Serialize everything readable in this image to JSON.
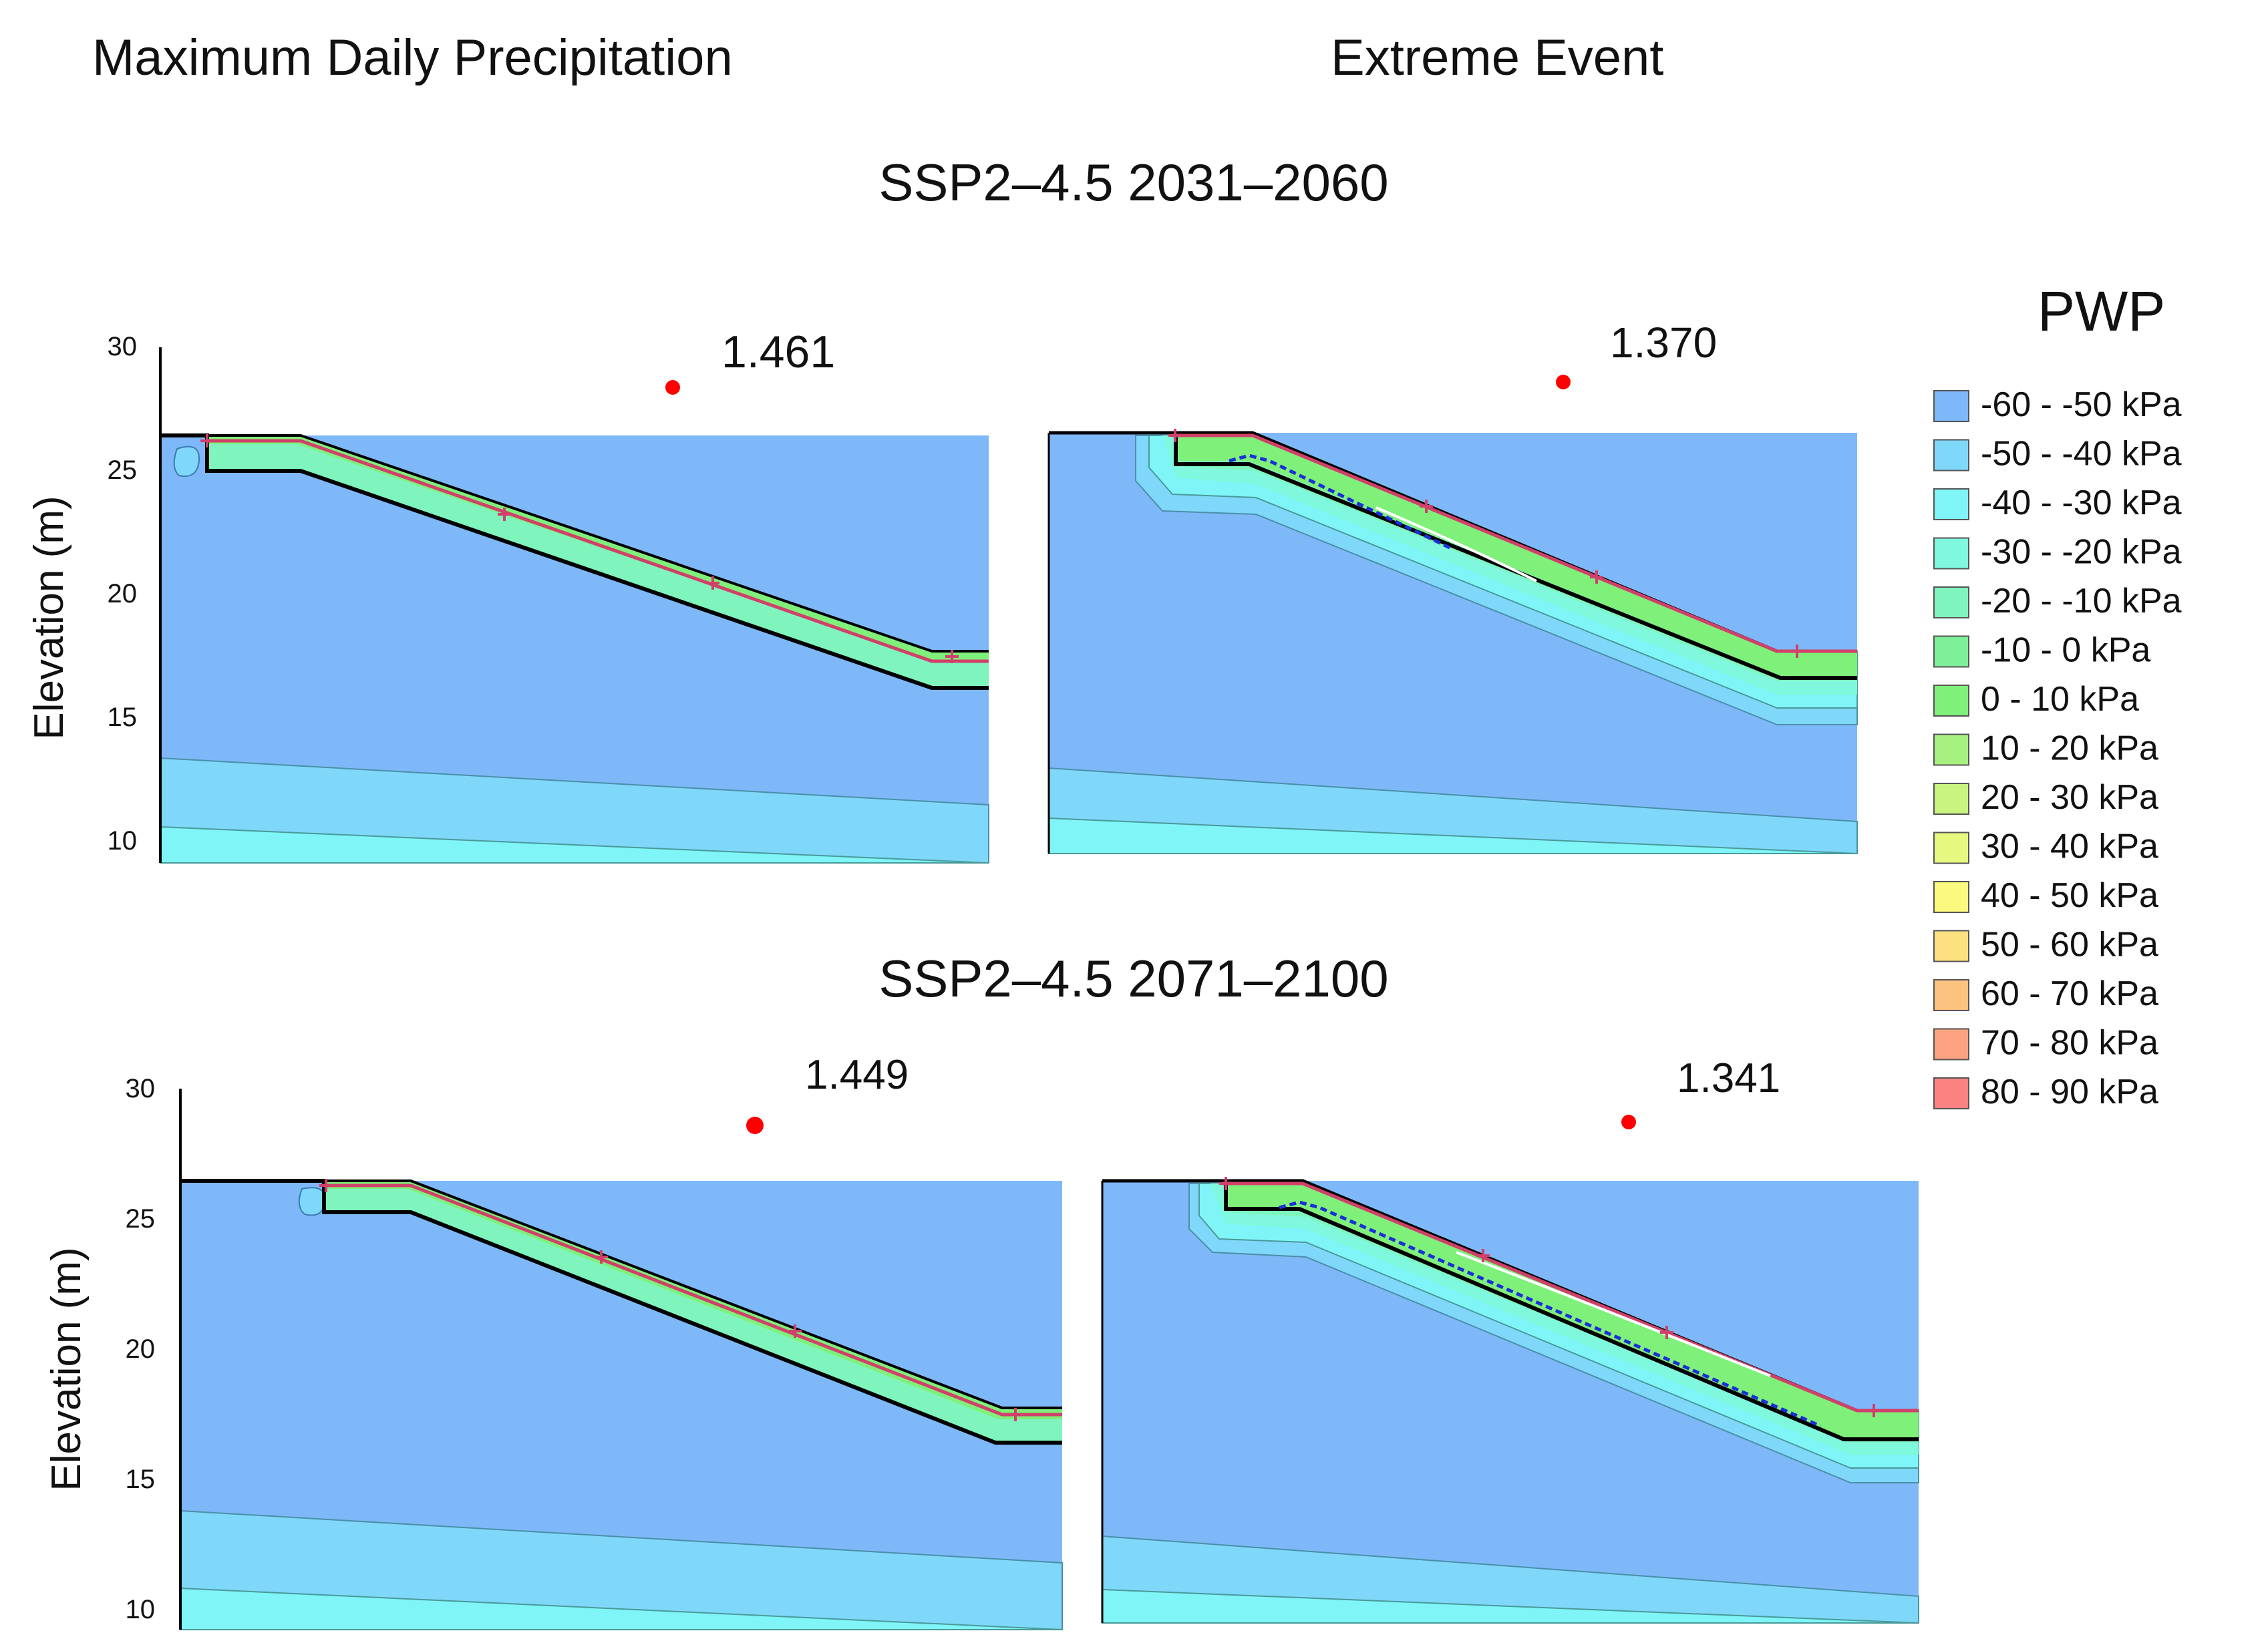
{
  "column_titles": {
    "left": "Maximum  Daily Precipitation",
    "right": "Extreme  Event"
  },
  "row_titles": {
    "top": "SSP2–4.5 2031–2060",
    "bottom": "SSP2–4.5 2071–2100"
  },
  "axis": {
    "ylabel": "Elevation (m)",
    "ticks": [
      "30",
      "25",
      "20",
      "15",
      "10"
    ]
  },
  "factors_of_safety": {
    "p1": "1.461",
    "p2": "1.370",
    "p3": "1.449",
    "p4": "1.341"
  },
  "legend": {
    "title": "PWP",
    "items": [
      {
        "label": "-60 - -50 kPa",
        "color": "#7fb8f8"
      },
      {
        "label": "-50 - -40 kPa",
        "color": "#7fd8fa"
      },
      {
        "label": "-40 - -30 kPa",
        "color": "#7ff5f7"
      },
      {
        "label": "-30 - -20 kPa",
        "color": "#7ff8dd"
      },
      {
        "label": "-20 - -10 kPa",
        "color": "#7ff5bd"
      },
      {
        "label": "-10 - 0 kPa",
        "color": "#7ff09a"
      },
      {
        "label": "0 - 10 kPa",
        "color": "#7ff07a"
      },
      {
        "label": "10 - 20 kPa",
        "color": "#a6f07f"
      },
      {
        "label": "20 - 30 kPa",
        "color": "#c8f47f"
      },
      {
        "label": "30 - 40 kPa",
        "color": "#e6f87f"
      },
      {
        "label": "40 - 50 kPa",
        "color": "#fbfa7f"
      },
      {
        "label": "50 - 60 kPa",
        "color": "#fde180"
      },
      {
        "label": "60 - 70 kPa",
        "color": "#fcc27f"
      },
      {
        "label": "70 - 80 kPa",
        "color": "#fba380"
      },
      {
        "label": "80 - 90 kPa",
        "color": "#fb8280"
      }
    ]
  },
  "colors": {
    "boundary": "#000000",
    "surface_line": "#d0406a",
    "slip_center": "#ff0000",
    "water_table": "#1a2fd8"
  }
}
